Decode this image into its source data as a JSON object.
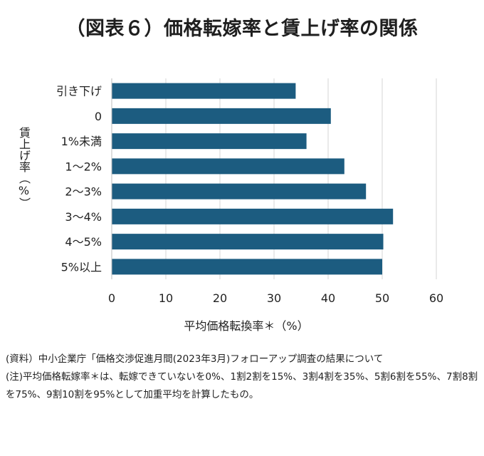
{
  "title": "（図表６）価格転嫁率と賃上げ率の関係",
  "chart_data": {
    "type": "bar",
    "orientation": "horizontal",
    "categories": [
      "引き下げ",
      "0",
      "1%未満",
      "1～2%",
      "2～3%",
      "3～4%",
      "4～5%",
      "5%以上"
    ],
    "values": [
      34,
      40.5,
      36,
      43,
      47,
      52,
      50.2,
      50
    ],
    "xlabel": "平均価格転換率＊（%）",
    "ylabel": "賃上げ率（%）",
    "xlim": [
      0,
      60
    ],
    "xticks": [
      "0",
      "10",
      "20",
      "30",
      "40",
      "50",
      "60"
    ],
    "grid": true,
    "bar_color": "#1c5c80"
  },
  "notes": {
    "source": "(資料）中小企業庁「価格交渉促進月間(2023年3月)フォローアップ調査の結果について",
    "note": "(注)平均価格転嫁率＊は、転嫁できていないを0%、1割2割を15%、3割4割を35%、5割6割を55%、7割8割を75%、9割10割を95%として加重平均を計算したもの。"
  }
}
